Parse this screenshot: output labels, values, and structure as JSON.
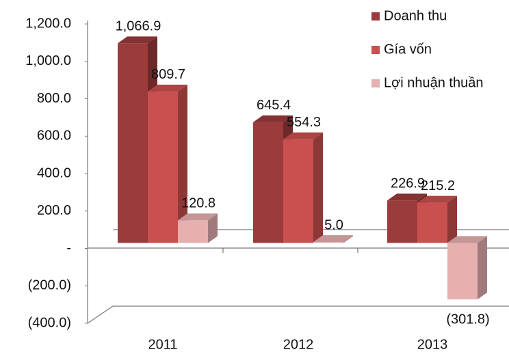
{
  "chart_data": {
    "type": "bar3d",
    "categories": [
      "2011",
      "2012",
      "2013"
    ],
    "series": [
      {
        "name": "Doanh thu",
        "color": "#9b3b3b",
        "values": [
          1066.9,
          645.4,
          226.9
        ],
        "value_labels": [
          "1,066.9",
          "645.4",
          "226.9"
        ]
      },
      {
        "name": "Gía vốn",
        "color": "#c9504f",
        "values": [
          809.7,
          554.3,
          215.2
        ],
        "value_labels": [
          "809.7",
          "554.3",
          "215.2"
        ]
      },
      {
        "name": "Lợi nhuận thuần",
        "color": "#e6b0b0",
        "values": [
          120.8,
          5.0,
          -301.8
        ],
        "value_labels": [
          "120.8",
          "5.0",
          "(301.8)"
        ]
      }
    ],
    "ylim": [
      -400,
      1200
    ],
    "yticks": [
      {
        "value": -400,
        "label": "(400.0)"
      },
      {
        "value": -200,
        "label": "(200.0)"
      },
      {
        "value": 0,
        "label": "-"
      },
      {
        "value": 200,
        "label": "200.0"
      },
      {
        "value": 400,
        "label": "400.0"
      },
      {
        "value": 600,
        "label": "600.0"
      },
      {
        "value": 800,
        "label": "800.0"
      },
      {
        "value": 1000,
        "label": "1,000.0"
      },
      {
        "value": 1200,
        "label": "1,200.0"
      }
    ],
    "legend": "top-right"
  }
}
